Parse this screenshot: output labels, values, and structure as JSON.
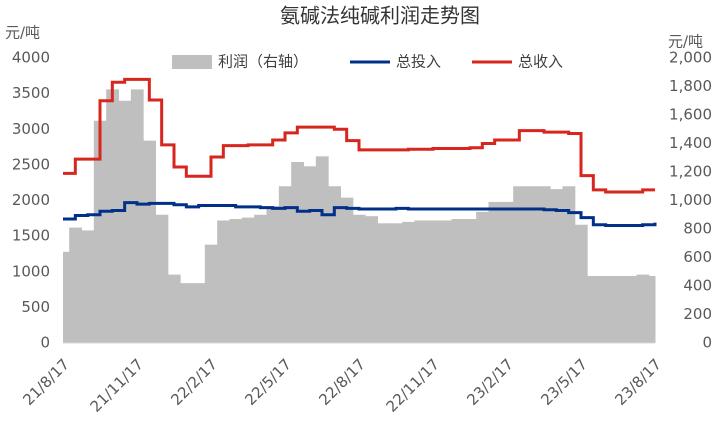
{
  "chart_data": {
    "type": "bar-line",
    "title": "氨碱法纯碱利润走势图",
    "y_label": "元/吨",
    "y2_label": "元/吨",
    "legend": "top",
    "categories": [
      "21/8/17",
      null,
      null,
      null,
      null,
      null,
      "21/11/17",
      null,
      null,
      null,
      null,
      null,
      "22/2/17",
      null,
      null,
      null,
      null,
      null,
      "22/5/17",
      null,
      null,
      null,
      null,
      null,
      "22/8/17",
      null,
      null,
      null,
      null,
      null,
      "22/11/17",
      null,
      null,
      null,
      null,
      null,
      "23/2/17",
      null,
      null,
      null,
      null,
      null,
      "23/5/17",
      null,
      null,
      null,
      null,
      null,
      "23/8/17"
    ],
    "series": [
      {
        "name": "利润（右轴）",
        "type": "bar",
        "axis": "y2",
        "color": "#bfbfbf",
        "values": [
          640,
          810,
          790,
          1560,
          1780,
          1700,
          1780,
          1420,
          900,
          480,
          420,
          420,
          690,
          860,
          870,
          880,
          900,
          960,
          1100,
          1270,
          1240,
          1310,
          1100,
          1020,
          900,
          890,
          840,
          840,
          850,
          860,
          860,
          860,
          870,
          870,
          920,
          990,
          990,
          1100,
          1100,
          1100,
          1080,
          1100,
          830,
          470,
          470,
          470,
          470,
          480,
          470
        ]
      },
      {
        "name": "总投入",
        "type": "line",
        "color": "#003087",
        "values": [
          1740,
          1790,
          1800,
          1850,
          1860,
          1970,
          1950,
          1960,
          1960,
          1940,
          1910,
          1930,
          1930,
          1930,
          1910,
          1910,
          1900,
          1890,
          1900,
          1850,
          1860,
          1800,
          1900,
          1890,
          1880,
          1880,
          1880,
          1890,
          1880,
          1880,
          1880,
          1880,
          1880,
          1880,
          1880,
          1880,
          1880,
          1880,
          1880,
          1870,
          1860,
          1830,
          1760,
          1660,
          1650,
          1650,
          1650,
          1660,
          1690
        ]
      },
      {
        "name": "总收入",
        "type": "line",
        "color": "#d7261e",
        "values": [
          2380,
          2580,
          2580,
          3400,
          3660,
          3700,
          3700,
          3410,
          2780,
          2470,
          2340,
          2340,
          2610,
          2770,
          2770,
          2780,
          2780,
          2850,
          2950,
          3030,
          3030,
          3030,
          3000,
          2840,
          2710,
          2710,
          2710,
          2710,
          2720,
          2720,
          2730,
          2730,
          2730,
          2740,
          2800,
          2850,
          2850,
          2980,
          2980,
          2960,
          2960,
          2940,
          2350,
          2150,
          2120,
          2120,
          2120,
          2150,
          2150
        ]
      }
    ],
    "ylim": [
      0,
      4000
    ],
    "yticks": [
      0,
      500,
      1000,
      1500,
      2000,
      2500,
      3000,
      3500,
      4000
    ],
    "y2lim": [
      0,
      2000
    ],
    "y2ticks": [
      0,
      200,
      400,
      600,
      800,
      {
        "value": 1000,
        "label": "1,000"
      },
      {
        "value": 1200,
        "label": "1,200"
      },
      {
        "value": 1400,
        "label": "1,400"
      },
      {
        "value": 1600,
        "label": "1,600"
      },
      {
        "value": 1800,
        "label": "1,800"
      },
      {
        "value": 2000,
        "label": "2,000"
      }
    ],
    "grid": false
  }
}
